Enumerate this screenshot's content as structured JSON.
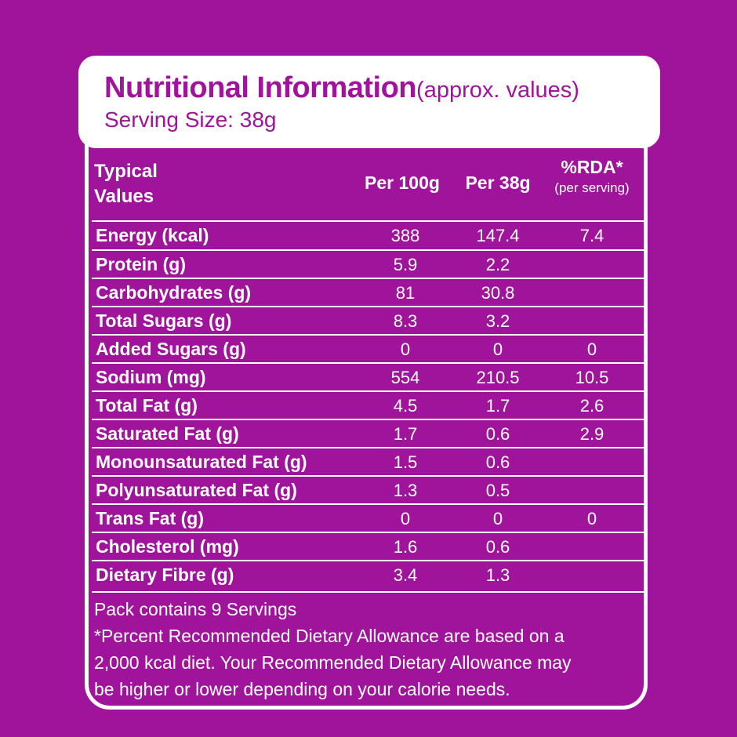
{
  "header": {
    "title": "Nutritional Information",
    "title_suffix": "(approx. values)",
    "serving_size": "Serving Size: 38g"
  },
  "columns": {
    "typical_line1": "Typical",
    "typical_line2": "Values",
    "per100": "Per 100g",
    "per38": "Per 38g",
    "rda": "%RDA*",
    "rda_sub": "(per serving)"
  },
  "rows": [
    {
      "label": "Energy (kcal)",
      "per100": "388",
      "per38": "147.4",
      "rda": "7.4"
    },
    {
      "label": "Protein (g)",
      "per100": "5.9",
      "per38": "2.2",
      "rda": ""
    },
    {
      "label": "Carbohydrates (g)",
      "per100": "81",
      "per38": "30.8",
      "rda": ""
    },
    {
      "label": "Total Sugars (g)",
      "per100": "8.3",
      "per38": "3.2",
      "rda": ""
    },
    {
      "label": "Added Sugars (g)",
      "per100": "0",
      "per38": "0",
      "rda": "0"
    },
    {
      "label": "Sodium (mg)",
      "per100": "554",
      "per38": "210.5",
      "rda": "10.5"
    },
    {
      "label": "Total Fat (g)",
      "per100": "4.5",
      "per38": "1.7",
      "rda": "2.6"
    },
    {
      "label": "Saturated Fat (g)",
      "per100": "1.7",
      "per38": "0.6",
      "rda": "2.9"
    },
    {
      "label": "Monounsaturated Fat (g)",
      "per100": "1.5",
      "per38": "0.6",
      "rda": ""
    },
    {
      "label": "Polyunsaturated Fat (g)",
      "per100": "1.3",
      "per38": "0.5",
      "rda": ""
    },
    {
      "label": "Trans Fat (g)",
      "per100": "0",
      "per38": "0",
      "rda": "0"
    },
    {
      "label": "Cholesterol (mg)",
      "per100": "1.6",
      "per38": "0.6",
      "rda": ""
    },
    {
      "label": "Dietary Fibre (g)",
      "per100": "3.4",
      "per38": "1.3",
      "rda": ""
    }
  ],
  "footer": {
    "servings": "Pack contains 9 Servings",
    "note_line1": "*Percent Recommended Dietary Allowance are based on a",
    "note_line2": "2,000 kcal diet. Your Recommended Dietary Allowance may",
    "note_line3": "be higher or lower depending on your calorie needs."
  },
  "colors": {
    "background": "#a0149b",
    "panel": "#ffffff",
    "title": "#a0149b"
  }
}
